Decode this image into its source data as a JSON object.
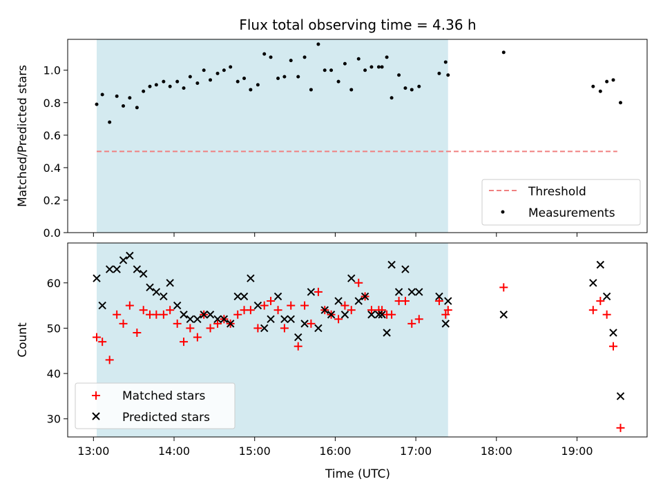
{
  "chart_data": [
    {
      "type": "scatter",
      "title": "Flux total observing time = 4.36 h",
      "ylabel": "Matched/Predicted stars",
      "xlim": [
        12.68,
        19.87
      ],
      "ylim": [
        0,
        1.19
      ],
      "yticks": [
        0.0,
        0.2,
        0.4,
        0.6,
        0.8,
        1.0
      ],
      "ytick_labels": [
        "0.0",
        "0.2",
        "0.4",
        "0.6",
        "0.8",
        "1.0"
      ],
      "shaded_span": [
        13.04,
        17.4
      ],
      "shaded_color": "#d4eaf0",
      "legend_position": "lower-right",
      "threshold": {
        "name": "Threshold",
        "value": 0.5,
        "x": [
          13.04,
          19.5
        ],
        "color": "#f08080",
        "style": "dashed"
      },
      "series": [
        {
          "name": "Measurements",
          "color": "#000000",
          "marker": "dot",
          "x": [
            13.04,
            13.11,
            13.2,
            13.29,
            13.37,
            13.45,
            13.54,
            13.62,
            13.7,
            13.78,
            13.87,
            13.95,
            14.04,
            14.12,
            14.2,
            14.29,
            14.37,
            14.45,
            14.54,
            14.62,
            14.7,
            14.79,
            14.87,
            14.95,
            15.04,
            15.12,
            15.2,
            15.29,
            15.37,
            15.45,
            15.54,
            15.62,
            15.7,
            15.79,
            15.87,
            15.95,
            16.04,
            16.12,
            16.2,
            16.29,
            16.37,
            16.45,
            16.54,
            16.58,
            16.64,
            16.7,
            16.79,
            16.87,
            16.95,
            17.04,
            17.29,
            17.37,
            17.4,
            18.09,
            19.2,
            19.29,
            19.37,
            19.45,
            19.54
          ],
          "y": [
            0.79,
            0.85,
            0.68,
            0.84,
            0.78,
            0.83,
            0.77,
            0.87,
            0.9,
            0.91,
            0.93,
            0.9,
            0.93,
            0.89,
            0.96,
            0.92,
            1.0,
            0.94,
            0.98,
            1.0,
            1.02,
            0.93,
            0.95,
            0.88,
            0.91,
            1.1,
            1.08,
            0.95,
            0.96,
            1.06,
            0.96,
            1.08,
            0.88,
            1.16,
            1.0,
            1.0,
            0.93,
            1.04,
            0.88,
            1.07,
            1.0,
            1.02,
            1.02,
            1.02,
            1.08,
            0.83,
            0.97,
            0.89,
            0.88,
            0.9,
            0.98,
            1.05,
            0.97,
            1.11,
            0.9,
            0.87,
            0.93,
            0.94,
            0.8
          ]
        }
      ]
    },
    {
      "type": "scatter",
      "xlabel": "Time (UTC)",
      "ylabel": "Count",
      "xlim": [
        12.68,
        19.87
      ],
      "ylim": [
        26,
        68.8
      ],
      "xticks": [
        13,
        14,
        15,
        16,
        17,
        18,
        19
      ],
      "xtick_labels": [
        "13:00",
        "14:00",
        "15:00",
        "16:00",
        "17:00",
        "18:00",
        "19:00"
      ],
      "yticks": [
        30,
        40,
        50,
        60
      ],
      "ytick_labels": [
        "30",
        "40",
        "50",
        "60"
      ],
      "shaded_span": [
        13.04,
        17.4
      ],
      "shaded_color": "#d4eaf0",
      "legend_position": "lower-left",
      "series": [
        {
          "name": "Matched stars",
          "color": "#ff0000",
          "marker": "plus",
          "x": [
            13.04,
            13.11,
            13.2,
            13.29,
            13.37,
            13.45,
            13.54,
            13.62,
            13.7,
            13.78,
            13.87,
            13.95,
            14.04,
            14.12,
            14.2,
            14.29,
            14.37,
            14.45,
            14.54,
            14.62,
            14.7,
            14.79,
            14.87,
            14.95,
            15.04,
            15.12,
            15.2,
            15.29,
            15.37,
            15.45,
            15.54,
            15.62,
            15.7,
            15.79,
            15.87,
            15.95,
            16.04,
            16.12,
            16.2,
            16.29,
            16.37,
            16.45,
            16.54,
            16.58,
            16.64,
            16.7,
            16.79,
            16.87,
            16.95,
            17.04,
            17.29,
            17.37,
            17.4,
            18.09,
            19.2,
            19.29,
            19.37,
            19.45,
            19.54
          ],
          "y": [
            48,
            47,
            43,
            53,
            51,
            55,
            49,
            54,
            53,
            53,
            53,
            54,
            51,
            47,
            50,
            48,
            53,
            50,
            51,
            52,
            51,
            53,
            54,
            54,
            50,
            55,
            56,
            54,
            50,
            55,
            46,
            55,
            51,
            58,
            54,
            53,
            52,
            55,
            54,
            60,
            57,
            54,
            54,
            54,
            53,
            53,
            56,
            56,
            51,
            52,
            56,
            53,
            54,
            59,
            54,
            56,
            53,
            46,
            28
          ]
        },
        {
          "name": "Predicted stars",
          "color": "#000000",
          "marker": "x",
          "x": [
            13.04,
            13.11,
            13.2,
            13.29,
            13.37,
            13.45,
            13.54,
            13.62,
            13.7,
            13.78,
            13.87,
            13.95,
            14.04,
            14.12,
            14.2,
            14.29,
            14.37,
            14.45,
            14.54,
            14.62,
            14.7,
            14.79,
            14.87,
            14.95,
            15.04,
            15.12,
            15.2,
            15.29,
            15.37,
            15.45,
            15.54,
            15.62,
            15.7,
            15.79,
            15.87,
            15.95,
            16.04,
            16.12,
            16.2,
            16.29,
            16.37,
            16.45,
            16.54,
            16.58,
            16.64,
            16.7,
            16.79,
            16.87,
            16.95,
            17.04,
            17.29,
            17.37,
            17.4,
            18.09,
            19.2,
            19.29,
            19.37,
            19.45,
            19.54
          ],
          "y": [
            61,
            55,
            63,
            63,
            65,
            66,
            63,
            62,
            59,
            58,
            57,
            60,
            55,
            53,
            52,
            52,
            53,
            53,
            52,
            52,
            51,
            57,
            57,
            61,
            55,
            50,
            52,
            57,
            52,
            52,
            48,
            51,
            58,
            50,
            54,
            53,
            56,
            53,
            61,
            56,
            57,
            53,
            53,
            53,
            49,
            64,
            58,
            63,
            58,
            58,
            57,
            51,
            56,
            53,
            60,
            64,
            57,
            49,
            35
          ]
        }
      ]
    }
  ]
}
